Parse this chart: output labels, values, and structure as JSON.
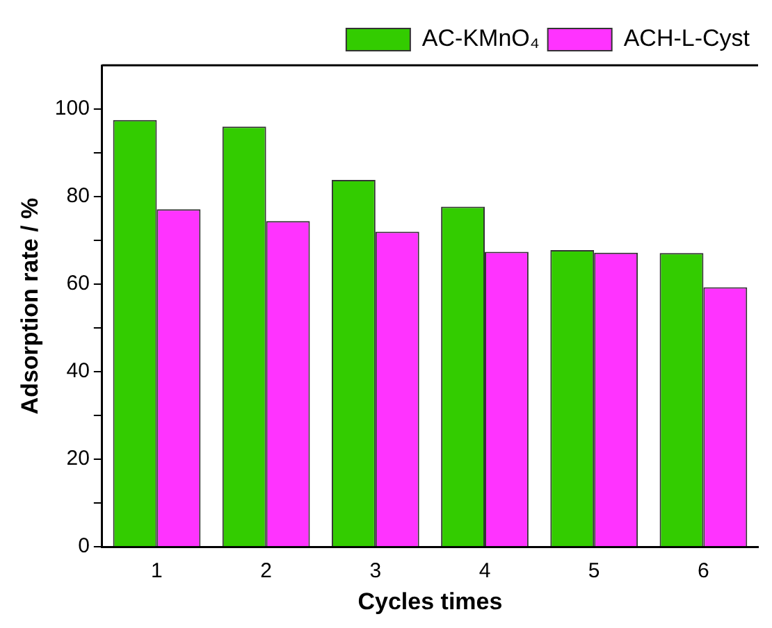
{
  "chart_data": {
    "type": "bar",
    "xlabel": "Cycles times",
    "ylabel": "Adsorption rate / %",
    "categories": [
      "1",
      "2",
      "3",
      "4",
      "5",
      "6"
    ],
    "series": [
      {
        "name": "AC-KMnO₄",
        "color": "#33cc00",
        "values": [
          97.5,
          96.0,
          83.8,
          77.7,
          67.8,
          67.1
        ]
      },
      {
        "name": "ACH-L-Cyst",
        "color": "#ff33ff",
        "values": [
          77.1,
          74.4,
          72.0,
          67.4,
          67.2,
          59.3
        ]
      }
    ],
    "ylim": [
      0,
      110
    ],
    "yticks": [
      0,
      {
        "value": 10,
        "label": null
      },
      20,
      {
        "value": 30,
        "label": null
      },
      40,
      {
        "value": 50,
        "label": null
      },
      60,
      {
        "value": 70,
        "label": null
      },
      80,
      {
        "value": 90,
        "label": null
      },
      100
    ],
    "grid": false,
    "legend": "top right"
  }
}
